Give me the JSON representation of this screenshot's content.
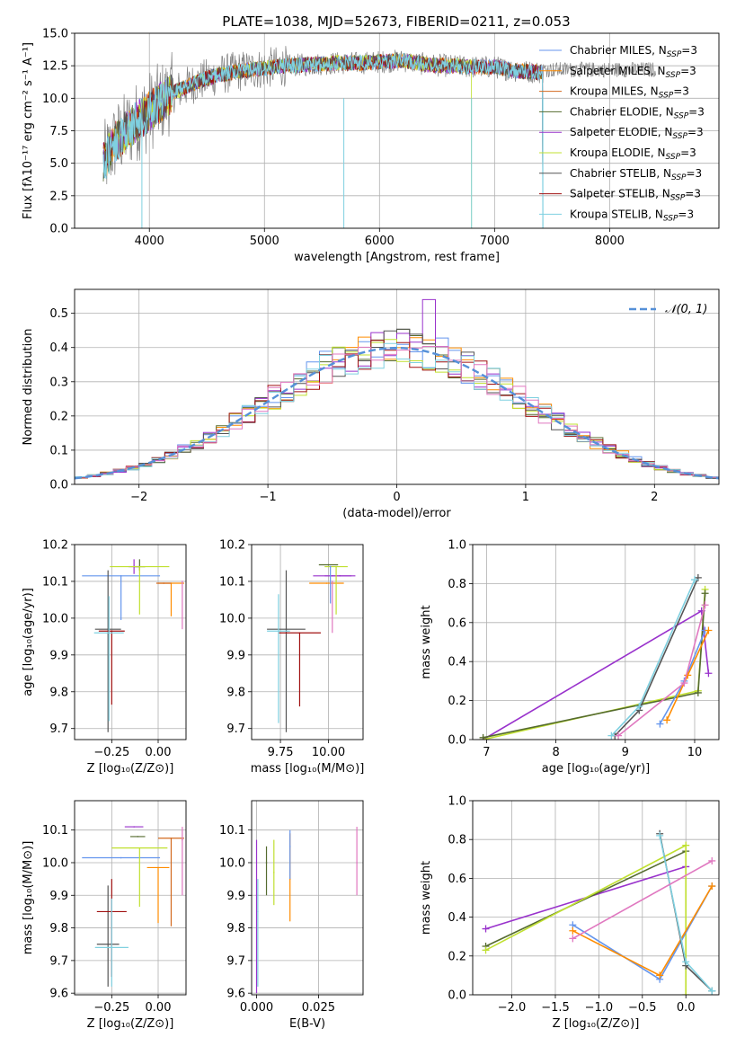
{
  "colors": {
    "Chabrier MILES": "#6495ed",
    "Salpeter MILES": "#ff8c00",
    "Kroupa MILES": "#d2691e",
    "Chabrier ELODIE": "#556b2f",
    "Salpeter ELODIE": "#9932cc",
    "Kroupa ELODIE": "#c0e030",
    "Chabrier STELIB": "#555555",
    "Salpeter STELIB": "#a01010",
    "Kroupa STELIB": "#7fd0e0",
    "pink": "#e078c0",
    "lime": "#b8ec40",
    "normal": "#5590d8",
    "data": "#808080"
  },
  "chart_data": [
    {
      "id": "spectrum",
      "type": "line",
      "title": "PLATE=1038, MJD=52673, FIBERID=0211, z=0.053",
      "xlabel": "wavelength [Angstrom, rest frame]",
      "ylabel": "Flux [fλ10⁻¹⁷ erg cm⁻² s⁻¹ A⁻¹]",
      "xlim": [
        3350,
        8950
      ],
      "ylim": [
        0,
        15
      ],
      "xticks": [
        "4000",
        "5000",
        "6000",
        "7000",
        "8000"
      ],
      "yticks": [
        "0.0",
        "2.5",
        "5.0",
        "7.5",
        "10.0",
        "12.5",
        "15.0"
      ],
      "legend_position": "top-right",
      "legend": [
        {
          "name": "Chabrier MILES, N",
          "sub": "SSP",
          "tail": "=3",
          "color_key": "Chabrier MILES"
        },
        {
          "name": "Salpeter MILES, N",
          "sub": "SSP",
          "tail": "=3",
          "color_key": "Salpeter MILES"
        },
        {
          "name": "Kroupa MILES, N",
          "sub": "SSP",
          "tail": "=3",
          "color_key": "Kroupa MILES"
        },
        {
          "name": "Chabrier ELODIE, N",
          "sub": "SSP",
          "tail": "=3",
          "color_key": "Chabrier ELODIE"
        },
        {
          "name": "Salpeter ELODIE, N",
          "sub": "SSP",
          "tail": "=3",
          "color_key": "Salpeter ELODIE"
        },
        {
          "name": "Kroupa ELODIE, N",
          "sub": "SSP",
          "tail": "=3",
          "color_key": "Kroupa ELODIE"
        },
        {
          "name": "Chabrier STELIB, N",
          "sub": "SSP",
          "tail": "=3",
          "color_key": "Chabrier STELIB"
        },
        {
          "name": "Salpeter STELIB, N",
          "sub": "SSP",
          "tail": "=3",
          "color_key": "Salpeter STELIB"
        },
        {
          "name": "Kroupa STELIB, N",
          "sub": "SSP",
          "tail": "=3",
          "color_key": "Kroupa STELIB"
        }
      ],
      "continuum_x": [
        3600,
        3700,
        3850,
        4000,
        4200,
        4400,
        4600,
        4800,
        5000,
        5200,
        5400,
        5600,
        5800,
        6000,
        6200,
        6400,
        6600,
        6800,
        7000,
        7200,
        7420
      ],
      "continuum_y": [
        5.0,
        6.6,
        7.9,
        9.0,
        10.4,
        11.2,
        11.8,
        12.1,
        12.3,
        12.5,
        12.6,
        12.7,
        12.7,
        12.8,
        12.9,
        12.6,
        12.5,
        12.4,
        12.4,
        12.1,
        12.0
      ],
      "model_x_range": [
        3600,
        7420
      ],
      "models_ending_early": {
        "Kroupa ELODIE": 6800,
        "Chabrier MILES": 7420,
        "Salpeter MILES": 7420,
        "Kroupa MILES": 7420
      },
      "data_x_range": [
        3600,
        8400
      ],
      "dips": [
        {
          "x": 3935,
          "y": 0.0
        },
        {
          "x": 5690,
          "y": 0.0
        },
        {
          "x": 6800,
          "y": 0.0
        },
        {
          "x": 7420,
          "y": 0.0
        }
      ]
    },
    {
      "id": "residuals",
      "type": "histogram",
      "xlabel": "(data-model)/error",
      "ylabel": "Normed distribution",
      "xlim": [
        -2.5,
        2.5
      ],
      "ylim": [
        0,
        0.57
      ],
      "xticks": [
        "−2",
        "−1",
        "0",
        "1",
        "2"
      ],
      "yticks": [
        "0.0",
        "0.1",
        "0.2",
        "0.3",
        "0.4",
        "0.5"
      ],
      "legend": [
        "𝒩(0, 1)"
      ],
      "bin_width": 0.1,
      "peak_values": {
        "max": 0.54,
        "at": 0.25
      }
    },
    {
      "id": "age_vs_Z",
      "type": "errorbar",
      "xlabel": "Z [log₁₀(Z/Z⊙)]",
      "ylabel": "age  [log₁₀(age/yr)]",
      "xlim": [
        -0.45,
        0.15
      ],
      "ylim": [
        9.67,
        10.2
      ],
      "xticks": [
        "−0.25",
        "0.00"
      ],
      "yticks": [
        "9.7",
        "9.8",
        "9.9",
        "10.0",
        "10.1",
        "10.2"
      ],
      "points": [
        {
          "x": -0.2,
          "y": 10.115,
          "xerr": 0.21,
          "yerr_lo": 0.12,
          "yerr_hi": 0.0,
          "c": "Chabrier MILES"
        },
        {
          "x": 0.07,
          "y": 10.095,
          "xerr": 0.07,
          "yerr_lo": 0.09,
          "yerr_hi": 0.0,
          "c": "Salpeter MILES"
        },
        {
          "x": 0.03,
          "y": 10.095,
          "xerr": 0.04,
          "yerr_lo": 0.0,
          "yerr_hi": 0.0,
          "c": "Kroupa MILES"
        },
        {
          "x": -0.1,
          "y": 10.14,
          "xerr": 0.03,
          "yerr_lo": 0.01,
          "yerr_hi": 0.02,
          "c": "Chabrier ELODIE"
        },
        {
          "x": -0.13,
          "y": 10.14,
          "xerr": 0.03,
          "yerr_lo": 0.02,
          "yerr_hi": 0.02,
          "c": "Salpeter ELODIE"
        },
        {
          "x": -0.1,
          "y": 10.14,
          "xerr": 0.16,
          "yerr_lo": 0.13,
          "yerr_hi": 0.0,
          "c": "Kroupa ELODIE"
        },
        {
          "x": -0.27,
          "y": 9.97,
          "xerr": 0.07,
          "yerr_lo": 0.28,
          "yerr_hi": 0.16,
          "c": "Chabrier STELIB"
        },
        {
          "x": -0.25,
          "y": 9.965,
          "xerr": 0.07,
          "yerr_lo": 0.2,
          "yerr_hi": 0.0,
          "c": "Salpeter STELIB"
        },
        {
          "x": -0.265,
          "y": 9.96,
          "xerr": 0.08,
          "yerr_lo": 0.24,
          "yerr_hi": 0.1,
          "c": "Kroupa STELIB"
        },
        {
          "x": 0.13,
          "y": 10.1,
          "xerr": 0.0,
          "yerr_lo": 0.13,
          "yerr_hi": 0.0,
          "c": "pink"
        }
      ]
    },
    {
      "id": "age_vs_mass",
      "type": "errorbar",
      "xlabel": "mass [log₁₀(M/M⊙)]",
      "xlim": [
        9.6,
        10.18
      ],
      "ylim": [
        9.67,
        10.2
      ],
      "xticks": [
        "9.75",
        "10.00"
      ],
      "yticks": [
        "9.7",
        "9.8",
        "9.9",
        "10.0",
        "10.1",
        "10.2"
      ],
      "points": [
        {
          "x": 10.02,
          "y": 10.115,
          "xerr": 0.1,
          "yerr_lo": 0.0,
          "yerr_hi": 0.0,
          "c": "Salpeter ELODIE"
        },
        {
          "x": 10.06,
          "y": 10.115,
          "xerr": 0.08,
          "yerr_lo": 0.0,
          "yerr_hi": 0.0,
          "c": "Salpeter ELODIE"
        },
        {
          "x": 9.99,
          "y": 10.095,
          "xerr": 0.09,
          "yerr_lo": 0.0,
          "yerr_hi": 0.0,
          "c": "Salpeter MILES"
        },
        {
          "x": 10.02,
          "y": 10.1,
          "xerr": 0.0,
          "yerr_lo": 0.14,
          "yerr_hi": 0.0,
          "c": "pink"
        },
        {
          "x": 10.04,
          "y": 10.14,
          "xerr": 0.06,
          "yerr_lo": 0.13,
          "yerr_hi": 0.0,
          "c": "Kroupa ELODIE"
        },
        {
          "x": 10.0,
          "y": 10.145,
          "xerr": 0.05,
          "yerr_lo": 0.0,
          "yerr_hi": 0.0,
          "c": "Chabrier ELODIE"
        },
        {
          "x": 10.01,
          "y": 10.14,
          "xerr": 0.0,
          "yerr_lo": 0.1,
          "yerr_hi": 0.0,
          "c": "Chabrier MILES"
        },
        {
          "x": 9.78,
          "y": 9.97,
          "xerr": 0.1,
          "yerr_lo": 0.28,
          "yerr_hi": 0.16,
          "c": "Chabrier STELIB"
        },
        {
          "x": 9.85,
          "y": 9.96,
          "xerr": 0.11,
          "yerr_lo": 0.2,
          "yerr_hi": 0.0,
          "c": "Salpeter STELIB"
        },
        {
          "x": 9.74,
          "y": 9.965,
          "xerr": 0.06,
          "yerr_lo": 0.25,
          "yerr_hi": 0.1,
          "c": "Kroupa STELIB"
        }
      ]
    },
    {
      "id": "weight_vs_age",
      "type": "line",
      "xlabel": "age  [log₁₀(age/yr)]",
      "ylabel": "mass weight",
      "xlim": [
        6.8,
        10.35
      ],
      "ylim": [
        0,
        1.0
      ],
      "xticks": [
        "7",
        "8",
        "9",
        "10"
      ],
      "yticks": [
        "0.0",
        "0.2",
        "0.4",
        "0.6",
        "0.8",
        "1.0"
      ],
      "series": [
        {
          "c": "Salpeter ELODIE",
          "x": [
            6.95,
            10.1,
            10.2
          ],
          "y": [
            0.0,
            0.66,
            0.34
          ]
        },
        {
          "c": "Kroupa ELODIE",
          "x": [
            6.95,
            10.05,
            10.15
          ],
          "y": [
            0.0,
            0.25,
            0.77
          ]
        },
        {
          "c": "Chabrier ELODIE",
          "x": [
            6.95,
            10.05,
            10.15
          ],
          "y": [
            0.01,
            0.24,
            0.75
          ]
        },
        {
          "c": "Chabrier STELIB",
          "x": [
            8.85,
            9.2,
            10.05
          ],
          "y": [
            0.02,
            0.15,
            0.83
          ]
        },
        {
          "c": "Kroupa STELIB",
          "x": [
            8.8,
            9.2,
            10.0
          ],
          "y": [
            0.02,
            0.17,
            0.82
          ]
        },
        {
          "c": "Chabrier MILES",
          "x": [
            9.5,
            9.85,
            10.15
          ],
          "y": [
            0.08,
            0.3,
            0.56
          ]
        },
        {
          "c": "Salpeter MILES",
          "x": [
            9.6,
            9.9,
            10.2
          ],
          "y": [
            0.1,
            0.33,
            0.56
          ]
        },
        {
          "c": "pink",
          "x": [
            8.9,
            9.85,
            10.15
          ],
          "y": [
            0.02,
            0.29,
            0.69
          ]
        }
      ]
    },
    {
      "id": "mass_vs_Z",
      "type": "errorbar",
      "xlabel": "Z [log₁₀(Z/Z⊙)]",
      "ylabel": "mass [log₁₀(M/M⊙)]",
      "xlim": [
        -0.45,
        0.15
      ],
      "ylim": [
        9.595,
        10.19
      ],
      "xticks": [
        "−0.25",
        "0.00"
      ],
      "yticks": [
        "9.6",
        "9.7",
        "9.8",
        "9.9",
        "10.0",
        "10.1"
      ],
      "points": [
        {
          "x": -0.2,
          "y": 10.015,
          "xerr": 0.21,
          "yerr_lo": 0.0,
          "yerr_hi": 0.0,
          "c": "Chabrier MILES"
        },
        {
          "x": 0.0,
          "y": 9.985,
          "xerr": 0.06,
          "yerr_lo": 0.17,
          "yerr_hi": 0.0,
          "c": "Salpeter MILES"
        },
        {
          "x": 0.07,
          "y": 10.075,
          "xerr": 0.07,
          "yerr_lo": 0.27,
          "yerr_hi": 0.0,
          "c": "Kroupa MILES"
        },
        {
          "x": -0.13,
          "y": 10.11,
          "xerr": 0.05,
          "yerr_lo": 0.0,
          "yerr_hi": 0.0,
          "c": "Salpeter ELODIE"
        },
        {
          "x": -0.11,
          "y": 10.08,
          "xerr": 0.04,
          "yerr_lo": 0.0,
          "yerr_hi": 0.0,
          "c": "Chabrier ELODIE"
        },
        {
          "x": -0.1,
          "y": 10.045,
          "xerr": 0.15,
          "yerr_lo": 0.18,
          "yerr_hi": 0.0,
          "c": "Kroupa ELODIE"
        },
        {
          "x": -0.27,
          "y": 9.75,
          "xerr": 0.06,
          "yerr_lo": 0.13,
          "yerr_hi": 0.18,
          "c": "Chabrier STELIB"
        },
        {
          "x": -0.25,
          "y": 9.85,
          "xerr": 0.08,
          "yerr_lo": 0.2,
          "yerr_hi": 0.1,
          "c": "Salpeter STELIB"
        },
        {
          "x": -0.25,
          "y": 9.74,
          "xerr": 0.09,
          "yerr_lo": 0.12,
          "yerr_hi": 0.15,
          "c": "Kroupa STELIB"
        },
        {
          "x": 0.13,
          "y": 10.07,
          "xerr": 0.0,
          "yerr_lo": 0.17,
          "yerr_hi": 0.04,
          "c": "pink"
        }
      ]
    },
    {
      "id": "mass_vs_EBV",
      "type": "errorbar",
      "xlabel": "E(B-V)",
      "xlim": [
        -0.002,
        0.043
      ],
      "ylim": [
        9.595,
        10.19
      ],
      "xticks": [
        "0.000",
        "0.025"
      ],
      "yticks": [
        "9.6",
        "9.7",
        "9.8",
        "9.9",
        "10.0",
        "10.1"
      ],
      "points": [
        {
          "x": 0.0,
          "y": 9.9,
          "xerr": 0.0,
          "yerr_lo": 0.3,
          "yerr_hi": 0.17,
          "c": "Salpeter ELODIE"
        },
        {
          "x": 0.0005,
          "y": 9.85,
          "xerr": 0.0,
          "yerr_lo": 0.23,
          "yerr_hi": 0.1,
          "c": "Kroupa STELIB"
        },
        {
          "x": 0.004,
          "y": 10.0,
          "xerr": 0.0,
          "yerr_lo": 0.1,
          "yerr_hi": 0.05,
          "c": "Chabrier ELODIE"
        },
        {
          "x": 0.007,
          "y": 9.97,
          "xerr": 0.0,
          "yerr_lo": 0.1,
          "yerr_hi": 0.1,
          "c": "Kroupa ELODIE"
        },
        {
          "x": 0.0135,
          "y": 9.95,
          "xerr": 0.0,
          "yerr_lo": 0.13,
          "yerr_hi": 0.14,
          "c": "Salpeter MILES"
        },
        {
          "x": 0.0135,
          "y": 10.05,
          "xerr": 0.0,
          "yerr_lo": 0.1,
          "yerr_hi": 0.05,
          "c": "Chabrier MILES"
        },
        {
          "x": 0.0405,
          "y": 10.0,
          "xerr": 0.0,
          "yerr_lo": 0.1,
          "yerr_hi": 0.11,
          "c": "pink"
        }
      ]
    },
    {
      "id": "weight_vs_Z",
      "type": "line",
      "xlabel": "Z [log₁₀(Z/Z⊙)]",
      "ylabel": "mass weight",
      "xlim": [
        -2.45,
        0.38
      ],
      "ylim": [
        0,
        1.0
      ],
      "xticks": [
        "−2.0",
        "−1.5",
        "−1.0",
        "−0.5",
        "0.0"
      ],
      "yticks": [
        "0.0",
        "0.2",
        "0.4",
        "0.6",
        "0.8",
        "1.0"
      ],
      "series": [
        {
          "c": "Salpeter ELODIE",
          "x": [
            -2.3,
            0.0
          ],
          "y": [
            0.34,
            0.66
          ]
        },
        {
          "c": "Chabrier ELODIE",
          "x": [
            -2.3,
            0.0
          ],
          "y": [
            0.25,
            0.74
          ]
        },
        {
          "c": "Kroupa ELODIE",
          "x": [
            -2.3,
            0.0,
            0.0
          ],
          "y": [
            0.23,
            0.77,
            0.0
          ]
        },
        {
          "c": "Chabrier MILES",
          "x": [
            -1.3,
            -0.3,
            0.3
          ],
          "y": [
            0.36,
            0.08,
            0.56
          ]
        },
        {
          "c": "Salpeter MILES",
          "x": [
            -1.3,
            -0.3,
            0.3
          ],
          "y": [
            0.33,
            0.1,
            0.56
          ]
        },
        {
          "c": "Chabrier STELIB",
          "x": [
            -0.3,
            0.0,
            0.3
          ],
          "y": [
            0.83,
            0.15,
            0.02
          ]
        },
        {
          "c": "Kroupa STELIB",
          "x": [
            -0.3,
            0.0,
            0.3
          ],
          "y": [
            0.82,
            0.17,
            0.02
          ]
        },
        {
          "c": "pink",
          "x": [
            -1.3,
            0.3
          ],
          "y": [
            0.29,
            0.69
          ]
        }
      ]
    }
  ]
}
